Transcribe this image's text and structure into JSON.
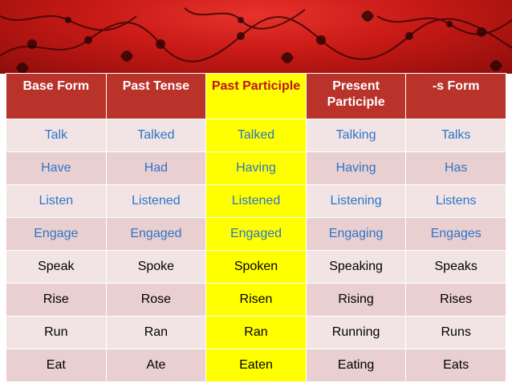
{
  "table": {
    "headers": [
      {
        "label": "Base Form"
      },
      {
        "label": "Past Tense"
      },
      {
        "label": "Past Participle"
      },
      {
        "label": "Present Participle"
      },
      {
        "label": "-s Form"
      }
    ],
    "rows": [
      {
        "cells": [
          "Talk",
          "Talked",
          "Talked",
          "Talking",
          "Talks"
        ]
      },
      {
        "cells": [
          "Have",
          "Had",
          "Having",
          "Having",
          "Has"
        ]
      },
      {
        "cells": [
          "Listen",
          "Listened",
          "Listened",
          "Listening",
          "Listens"
        ]
      },
      {
        "cells": [
          "Engage",
          "Engaged",
          "Engaged",
          "Engaging",
          "Engages"
        ]
      },
      {
        "cells": [
          "Speak",
          "Spoke",
          "Spoken",
          "Speaking",
          "Speaks"
        ]
      },
      {
        "cells": [
          "Rise",
          "Rose",
          "Risen",
          "Rising",
          "Rises"
        ]
      },
      {
        "cells": [
          "Run",
          "Ran",
          "Ran",
          "Running",
          "Runs"
        ]
      },
      {
        "cells": [
          "Eat",
          "Ate",
          "Eaten",
          "Eating",
          "Eats"
        ]
      }
    ]
  },
  "colors": {
    "header_bg": "#b9332b",
    "highlight": "#ffff00",
    "highlight_header_text": "#c0131a",
    "blue_text": "#2e74c9",
    "row_light": "#f2e4e4",
    "row_dark": "#e9cfcf",
    "banner_red": "#c81a16"
  }
}
